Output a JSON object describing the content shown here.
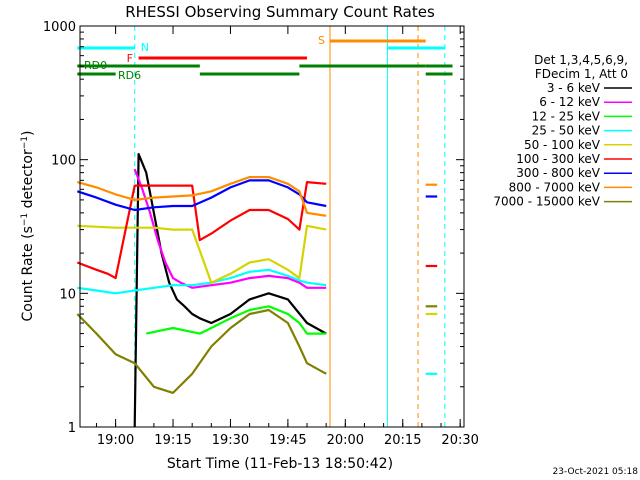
{
  "chart_data": {
    "type": "line",
    "title": "RHESSI Observing Summary Count Rates",
    "xlabel": "Start Time (11-Feb-13 18:50:42)",
    "ylabel_main": "Count Rate (s",
    "ylabel_sup1": "−1",
    "ylabel_mid": " detector",
    "ylabel_sup2": "−1",
    "ylabel_end": ")",
    "y_scale": "log",
    "ylim": [
      1,
      1000
    ],
    "x_ticks": [
      "19:00",
      "19:15",
      "19:30",
      "19:45",
      "20:00",
      "20:15",
      "20:30"
    ],
    "y_ticks": [
      "1",
      "10",
      "100",
      "1000"
    ],
    "legend_header": [
      "Det 1,3,4,5,6,9,",
      "FDecim 1, Att 0"
    ],
    "legend_position": "right",
    "footer_date": "23-Oct-2021 05:18",
    "flags": [
      {
        "label": "N",
        "color": "#00ffff",
        "segments": [
          [
            "18:50",
            "19:05"
          ],
          [
            "20:11",
            "20:26"
          ]
        ]
      },
      {
        "label": "F",
        "color": "#ff0000",
        "segments": [
          [
            "19:06",
            "19:50"
          ]
        ]
      },
      {
        "label": "S",
        "color": "#ff8c00",
        "segments": [
          [
            "19:56",
            "20:11"
          ],
          [
            "20:11",
            "20:21"
          ]
        ]
      },
      {
        "label": "RD0",
        "color": "#008000",
        "segments": [
          [
            "18:50",
            "19:22"
          ],
          [
            "19:48",
            "20:21"
          ],
          [
            "20:21",
            "20:28"
          ]
        ]
      },
      {
        "label": "RD6",
        "color": "#008000",
        "segments": [
          [
            "18:50",
            "19:00"
          ],
          [
            "19:22",
            "19:48"
          ],
          [
            "20:21",
            "20:28"
          ]
        ]
      }
    ],
    "vlines": [
      {
        "time": "19:05",
        "color": "#00ffff",
        "style": "dashed"
      },
      {
        "time": "19:56",
        "color": "#ff8c00",
        "style": "solid"
      },
      {
        "time": "20:11",
        "color": "#00ffff",
        "style": "solid"
      },
      {
        "time": "20:19",
        "color": "#ff8c00",
        "style": "dashed"
      },
      {
        "time": "20:26",
        "color": "#00ffff",
        "style": "dashed"
      }
    ],
    "series": [
      {
        "name": "3 - 6 keV",
        "color": "#000000",
        "points": [
          [
            "19:05",
            1
          ],
          [
            "19:06",
            110
          ],
          [
            "19:08",
            80
          ],
          [
            "19:10",
            40
          ],
          [
            "19:12",
            20
          ],
          [
            "19:14",
            12
          ],
          [
            "19:16",
            9
          ],
          [
            "19:18",
            8
          ],
          [
            "19:20",
            7
          ],
          [
            "19:22",
            6.5
          ],
          [
            "19:25",
            6
          ],
          [
            "19:30",
            7
          ],
          [
            "19:35",
            9
          ],
          [
            "19:40",
            10
          ],
          [
            "19:45",
            9
          ],
          [
            "19:50",
            6
          ],
          [
            "19:55",
            5
          ]
        ],
        "tail": []
      },
      {
        "name": "6 - 12 keV",
        "color": "#ff00ff",
        "points": [
          [
            "19:05",
            85
          ],
          [
            "19:07",
            60
          ],
          [
            "19:09",
            40
          ],
          [
            "19:11",
            25
          ],
          [
            "19:13",
            17
          ],
          [
            "19:15",
            13
          ],
          [
            "19:17",
            12
          ],
          [
            "19:20",
            11
          ],
          [
            "19:25",
            11.5
          ],
          [
            "19:30",
            12
          ],
          [
            "19:35",
            13
          ],
          [
            "19:40",
            13.5
          ],
          [
            "19:45",
            13
          ],
          [
            "19:48",
            12
          ],
          [
            "19:50",
            11
          ],
          [
            "19:55",
            11
          ]
        ],
        "tail": []
      },
      {
        "name": "12 - 25 keV",
        "color": "#00ff00",
        "points": [
          [
            "19:08",
            5
          ],
          [
            "19:15",
            5.5
          ],
          [
            "19:22",
            5
          ],
          [
            "19:25",
            5.5
          ],
          [
            "19:30",
            6.5
          ],
          [
            "19:35",
            7.5
          ],
          [
            "19:40",
            8
          ],
          [
            "19:45",
            7
          ],
          [
            "19:48",
            6
          ],
          [
            "19:50",
            5
          ],
          [
            "19:55",
            5
          ]
        ],
        "tail": []
      },
      {
        "name": "25 - 50 keV",
        "color": "#00ffff",
        "points": [
          [
            "18:50",
            11
          ],
          [
            "18:55",
            10.5
          ],
          [
            "19:00",
            10
          ],
          [
            "19:05",
            10.5
          ],
          [
            "19:10",
            11
          ],
          [
            "19:15",
            11.5
          ],
          [
            "19:20",
            11.5
          ],
          [
            "19:25",
            12
          ],
          [
            "19:30",
            13
          ],
          [
            "19:35",
            14.5
          ],
          [
            "19:40",
            15
          ],
          [
            "19:45",
            13.5
          ],
          [
            "19:48",
            12.5
          ],
          [
            "19:50",
            12
          ],
          [
            "19:55",
            11.5
          ]
        ],
        "tail": [
          [
            "20:21",
            2.5
          ],
          [
            "20:24",
            2.5
          ]
        ]
      },
      {
        "name": "50 - 100 keV",
        "color": "#d4d400",
        "points": [
          [
            "18:50",
            32
          ],
          [
            "19:00",
            31
          ],
          [
            "19:05",
            31
          ],
          [
            "19:10",
            31
          ],
          [
            "19:15",
            30
          ],
          [
            "19:20",
            30
          ],
          [
            "19:25",
            12
          ],
          [
            "19:30",
            14
          ],
          [
            "19:35",
            17
          ],
          [
            "19:40",
            18
          ],
          [
            "19:45",
            15
          ],
          [
            "19:48",
            13
          ],
          [
            "19:50",
            32
          ],
          [
            "19:55",
            30
          ]
        ],
        "tail": [
          [
            "20:21",
            7
          ],
          [
            "20:24",
            7
          ]
        ]
      },
      {
        "name": "100 - 300 keV",
        "color": "#ff0000",
        "points": [
          [
            "18:50",
            17
          ],
          [
            "18:55",
            15
          ],
          [
            "18:58",
            14
          ],
          [
            "19:00",
            13
          ],
          [
            "19:05",
            64
          ],
          [
            "19:10",
            64
          ],
          [
            "19:15",
            64
          ],
          [
            "19:20",
            64
          ],
          [
            "19:22",
            25
          ],
          [
            "19:25",
            28
          ],
          [
            "19:30",
            35
          ],
          [
            "19:35",
            42
          ],
          [
            "19:40",
            42
          ],
          [
            "19:45",
            36
          ],
          [
            "19:48",
            30
          ],
          [
            "19:50",
            68
          ],
          [
            "19:55",
            66
          ]
        ],
        "tail": [
          [
            "20:21",
            16
          ],
          [
            "20:24",
            16
          ]
        ]
      },
      {
        "name": "300 - 800 keV",
        "color": "#0000ff",
        "points": [
          [
            "18:50",
            58
          ],
          [
            "18:55",
            52
          ],
          [
            "19:00",
            46
          ],
          [
            "19:05",
            42
          ],
          [
            "19:10",
            44
          ],
          [
            "19:15",
            45
          ],
          [
            "19:20",
            45
          ],
          [
            "19:25",
            52
          ],
          [
            "19:30",
            62
          ],
          [
            "19:35",
            70
          ],
          [
            "19:40",
            70
          ],
          [
            "19:45",
            62
          ],
          [
            "19:48",
            55
          ],
          [
            "19:50",
            48
          ],
          [
            "19:55",
            45
          ]
        ],
        "tail": [
          [
            "20:21",
            53
          ],
          [
            "20:24",
            53
          ]
        ]
      },
      {
        "name": "800 - 7000 keV",
        "color": "#ff8c00",
        "points": [
          [
            "18:50",
            68
          ],
          [
            "18:55",
            62
          ],
          [
            "19:00",
            55
          ],
          [
            "19:05",
            50
          ],
          [
            "19:10",
            52
          ],
          [
            "19:15",
            53
          ],
          [
            "19:20",
            54
          ],
          [
            "19:25",
            58
          ],
          [
            "19:30",
            66
          ],
          [
            "19:35",
            74
          ],
          [
            "19:40",
            74
          ],
          [
            "19:45",
            66
          ],
          [
            "19:48",
            58
          ],
          [
            "19:50",
            40
          ],
          [
            "19:55",
            38
          ]
        ],
        "tail": [
          [
            "20:21",
            65
          ],
          [
            "20:24",
            65
          ]
        ]
      },
      {
        "name": "7000 - 15000 keV",
        "color": "#808000",
        "points": [
          [
            "18:50",
            7
          ],
          [
            "18:55",
            5
          ],
          [
            "19:00",
            3.5
          ],
          [
            "19:05",
            3
          ],
          [
            "19:10",
            2
          ],
          [
            "19:15",
            1.8
          ],
          [
            "19:20",
            2.5
          ],
          [
            "19:25",
            4
          ],
          [
            "19:30",
            5.5
          ],
          [
            "19:35",
            7
          ],
          [
            "19:40",
            7.5
          ],
          [
            "19:45",
            6
          ],
          [
            "19:48",
            4
          ],
          [
            "19:50",
            3
          ],
          [
            "19:55",
            2.5
          ]
        ],
        "tail": [
          [
            "20:21",
            8
          ],
          [
            "20:24",
            8
          ]
        ]
      }
    ]
  }
}
